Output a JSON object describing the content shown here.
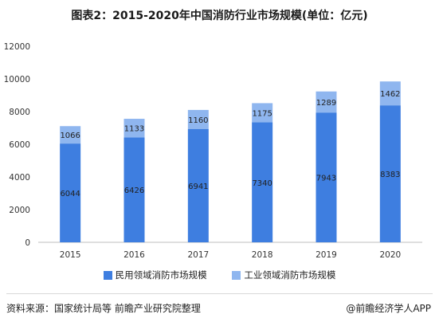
{
  "title": "图表2：2015-2020年中国消防行业市场规模(单位：亿元)",
  "legend": [
    {
      "label": "民用领域消防市场规模",
      "color": "#3e7ee0"
    },
    {
      "label": "工业领域消防市场规模",
      "color": "#8fb6ef"
    }
  ],
  "source": "资料来源：国家统计局等 前瞻产业研究院整理",
  "brand": "@前瞻经济学人APP",
  "chart_data": {
    "type": "bar",
    "stacked": true,
    "categories": [
      "2015",
      "2016",
      "2017",
      "2018",
      "2019",
      "2020"
    ],
    "series": [
      {
        "name": "民用领域消防市场规模",
        "values": [
          6044,
          6426,
          6941,
          7340,
          7943,
          8383
        ],
        "color": "#3e7ee0"
      },
      {
        "name": "工业领域消防市场规模",
        "values": [
          1066,
          1133,
          1160,
          1175,
          1289,
          1462
        ],
        "color": "#8fb6ef"
      }
    ],
    "ylim": [
      0,
      12000
    ],
    "yticks": [
      0,
      2000,
      4000,
      6000,
      8000,
      10000,
      12000
    ],
    "grid": false,
    "legend_position": "bottom"
  }
}
